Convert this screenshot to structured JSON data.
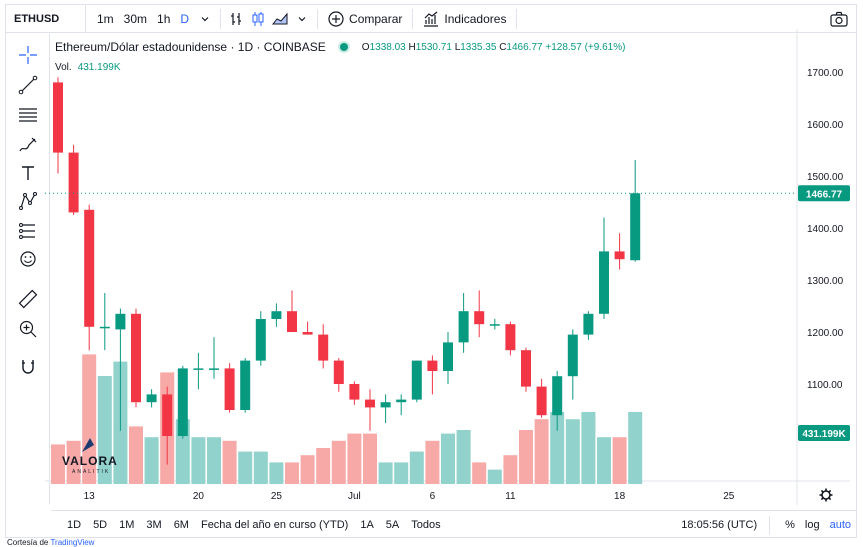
{
  "symbol": "ETHUSD",
  "timeframes": [
    "1m",
    "30m",
    "1h",
    "D"
  ],
  "active_timeframe": "D",
  "toolbar": {
    "compare_label": "Comparar",
    "indicators_label": "Indicadores"
  },
  "legend": {
    "title": "Ethereum/Dólar estadounidense · 1D · COINBASE",
    "o_key": "O",
    "o": "1338.03",
    "h_key": "H",
    "h": "1530.71",
    "l_key": "L",
    "l": "1335.35",
    "c_key": "C",
    "c": "1466.77",
    "change": "+128.57 (+9.61%)"
  },
  "volume_legend": {
    "label": "Vol.",
    "value": "431.199K"
  },
  "price_badge": "1466.77",
  "volume_badge": "431.199K",
  "watermark": {
    "name": "VALORA",
    "sub": "ANALITIK"
  },
  "bottom": {
    "ranges": [
      "1D",
      "5D",
      "1M",
      "3M",
      "6M",
      "Fecha del año en curso (YTD)",
      "1A",
      "5A",
      "Todos"
    ],
    "time": "18:05:56 (UTC)",
    "percent": "%",
    "log": "log",
    "auto": "auto"
  },
  "credit": {
    "prefix": "Cortesía de",
    "link": "TradingView"
  },
  "colors": {
    "up": "#089981",
    "down": "#f23645",
    "vol_up": "#92d2cc",
    "vol_down": "#f7a9a7",
    "accent": "#2962ff"
  },
  "chart_data": {
    "type": "candlestick",
    "y_ticks": [
      1000,
      1100,
      1200,
      1300,
      1400,
      1500,
      1600,
      1700
    ],
    "y_tick_labels": [
      "1000.00",
      "1100.00",
      "1200.00",
      "1300.00",
      "1400.00",
      "1500.00",
      "1600.00",
      "1700.00"
    ],
    "x_ticks": [
      {
        "label": "13",
        "index": 2
      },
      {
        "label": "20",
        "index": 9
      },
      {
        "label": "25",
        "index": 14
      },
      {
        "label": "Jul",
        "index": 19
      },
      {
        "label": "6",
        "index": 24
      },
      {
        "label": "11",
        "index": 29
      },
      {
        "label": "18",
        "index": 36
      },
      {
        "label": "25",
        "index": 43
      }
    ],
    "candles": [
      {
        "o": 1680,
        "h": 1690,
        "l": 1505,
        "c": 1545
      },
      {
        "o": 1545,
        "h": 1560,
        "l": 1425,
        "c": 1430
      },
      {
        "o": 1435,
        "h": 1445,
        "l": 1165,
        "c": 1210
      },
      {
        "o": 1210,
        "h": 1275,
        "l": 1165,
        "c": 1210
      },
      {
        "o": 1205,
        "h": 1245,
        "l": 1010,
        "c": 1235
      },
      {
        "o": 1235,
        "h": 1245,
        "l": 1055,
        "c": 1065
      },
      {
        "o": 1065,
        "h": 1090,
        "l": 1055,
        "c": 1080
      },
      {
        "o": 1080,
        "h": 1095,
        "l": 945,
        "c": 1000
      },
      {
        "o": 1000,
        "h": 1135,
        "l": 995,
        "c": 1130
      },
      {
        "o": 1130,
        "h": 1160,
        "l": 1090,
        "c": 1130
      },
      {
        "o": 1130,
        "h": 1190,
        "l": 1110,
        "c": 1130
      },
      {
        "o": 1130,
        "h": 1140,
        "l": 1045,
        "c": 1050
      },
      {
        "o": 1050,
        "h": 1150,
        "l": 1045,
        "c": 1145
      },
      {
        "o": 1145,
        "h": 1240,
        "l": 1135,
        "c": 1225
      },
      {
        "o": 1225,
        "h": 1255,
        "l": 1210,
        "c": 1240
      },
      {
        "o": 1240,
        "h": 1280,
        "l": 1200,
        "c": 1200
      },
      {
        "o": 1200,
        "h": 1220,
        "l": 1195,
        "c": 1195
      },
      {
        "o": 1195,
        "h": 1215,
        "l": 1130,
        "c": 1145
      },
      {
        "o": 1145,
        "h": 1150,
        "l": 1085,
        "c": 1100
      },
      {
        "o": 1100,
        "h": 1105,
        "l": 1060,
        "c": 1070
      },
      {
        "o": 1070,
        "h": 1090,
        "l": 1010,
        "c": 1055
      },
      {
        "o": 1055,
        "h": 1080,
        "l": 1025,
        "c": 1065
      },
      {
        "o": 1065,
        "h": 1080,
        "l": 1040,
        "c": 1070
      },
      {
        "o": 1070,
        "h": 1145,
        "l": 1065,
        "c": 1145
      },
      {
        "o": 1145,
        "h": 1155,
        "l": 1080,
        "c": 1125
      },
      {
        "o": 1125,
        "h": 1200,
        "l": 1100,
        "c": 1180
      },
      {
        "o": 1180,
        "h": 1275,
        "l": 1160,
        "c": 1240
      },
      {
        "o": 1240,
        "h": 1280,
        "l": 1190,
        "c": 1215
      },
      {
        "o": 1215,
        "h": 1225,
        "l": 1205,
        "c": 1215
      },
      {
        "o": 1215,
        "h": 1220,
        "l": 1155,
        "c": 1165
      },
      {
        "o": 1165,
        "h": 1170,
        "l": 1085,
        "c": 1095
      },
      {
        "o": 1095,
        "h": 1110,
        "l": 1035,
        "c": 1040
      },
      {
        "o": 1040,
        "h": 1125,
        "l": 1010,
        "c": 1115
      },
      {
        "o": 1115,
        "h": 1205,
        "l": 1070,
        "c": 1195
      },
      {
        "o": 1195,
        "h": 1240,
        "l": 1185,
        "c": 1235
      },
      {
        "o": 1235,
        "h": 1420,
        "l": 1225,
        "c": 1355
      },
      {
        "o": 1355,
        "h": 1390,
        "l": 1320,
        "c": 1340
      },
      {
        "o": 1338.03,
        "h": 1530.71,
        "l": 1335.35,
        "c": 1466.77
      }
    ],
    "volumes": [
      810,
      820,
      1060,
      1000,
      1040,
      860,
      830,
      1010,
      880,
      830,
      830,
      820,
      790,
      790,
      760,
      760,
      780,
      800,
      820,
      840,
      840,
      760,
      760,
      790,
      820,
      840,
      850,
      760,
      740,
      780,
      850,
      880,
      900,
      880,
      900,
      830,
      830,
      900
    ]
  }
}
